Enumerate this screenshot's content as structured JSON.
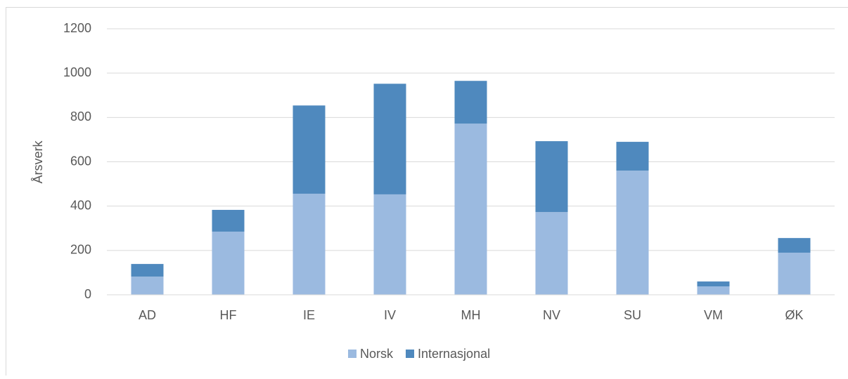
{
  "chart_data": {
    "type": "stacked_bar",
    "y_label": "Årsverk",
    "categories": [
      "AD",
      "HF",
      "IE",
      "IV",
      "MH",
      "NV",
      "SU",
      "VM",
      "ØK"
    ],
    "series": [
      {
        "name": "Norsk",
        "color": "#9bbae0",
        "values": [
          82,
          285,
          456,
          453,
          772,
          373,
          560,
          38,
          190
        ]
      },
      {
        "name": "Internasjonal",
        "color": "#4f89be",
        "values": [
          57,
          98,
          398,
          499,
          193,
          320,
          130,
          22,
          66
        ]
      }
    ],
    "ylim": [
      0,
      1200
    ],
    "yticks": [
      0,
      200,
      400,
      600,
      800,
      1000,
      1200
    ],
    "grid": true,
    "legend": "bottom"
  }
}
